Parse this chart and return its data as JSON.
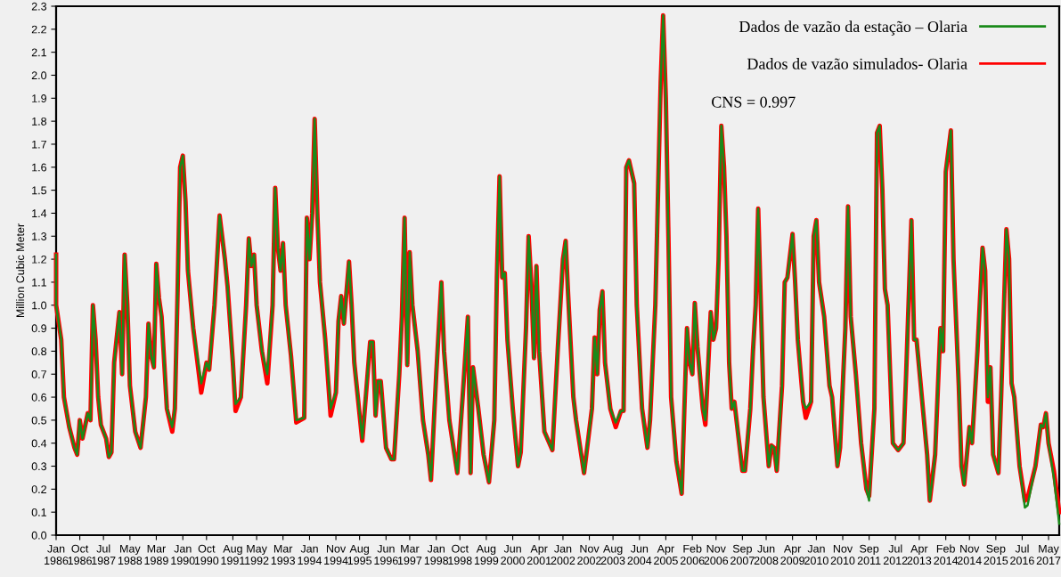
{
  "chart_data": {
    "type": "line",
    "ylabel": "Million Cubic Meter",
    "x": [
      "1986-01",
      "1986-01",
      "1986-03",
      "1986-04",
      "1986-06",
      "1986-08",
      "1986-09",
      "1986-10",
      "1986-11",
      "1987-01",
      "1987-02",
      "1987-03",
      "1987-04",
      "1987-05",
      "1987-06",
      "1987-08",
      "1987-09",
      "1987-10",
      "1987-11",
      "1988-01",
      "1988-02",
      "1988-03",
      "1988-04",
      "1988-05",
      "1988-07",
      "1988-09",
      "1988-11",
      "1988-12",
      "1989-01",
      "1989-02",
      "1989-03",
      "1989-04",
      "1989-05",
      "1989-07",
      "1989-09",
      "1989-10",
      "1989-11",
      "1989-12",
      "1990-01",
      "1990-02",
      "1990-03",
      "1990-05",
      "1990-08",
      "1990-10",
      "1990-11",
      "1991-01",
      "1991-03",
      "1991-05",
      "1991-06",
      "1991-08",
      "1991-09",
      "1991-11",
      "1992-01",
      "1992-02",
      "1992-03",
      "1992-04",
      "1992-05",
      "1992-07",
      "1992-09",
      "1992-11",
      "1992-12",
      "1993-01",
      "1993-02",
      "1993-03",
      "1993-04",
      "1993-06",
      "1993-08",
      "1993-11",
      "1993-12",
      "1994-01",
      "1994-02",
      "1994-03",
      "1994-04",
      "1994-05",
      "1994-07",
      "1994-09",
      "1994-11",
      "1994-12",
      "1995-01",
      "1995-02",
      "1995-04",
      "1995-05",
      "1995-06",
      "1995-09",
      "1995-12",
      "1996-01",
      "1996-02",
      "1996-03",
      "1996-04",
      "1996-06",
      "1996-08",
      "1996-09",
      "1996-11",
      "1996-12",
      "1997-01",
      "1997-02",
      "1997-03",
      "1997-04",
      "1997-06",
      "1997-08",
      "1997-10",
      "1997-11",
      "1998-01",
      "1998-03",
      "1998-04",
      "1998-06",
      "1998-09",
      "1998-11",
      "1999-01",
      "1999-02",
      "1999-03",
      "1999-05",
      "1999-07",
      "1999-09",
      "1999-11",
      "1999-12",
      "2000-01",
      "2000-02",
      "2000-03",
      "2000-04",
      "2000-06",
      "2000-08",
      "2000-09",
      "2000-11",
      "2000-12",
      "2001-01",
      "2001-02",
      "2001-03",
      "2001-04",
      "2001-06",
      "2001-09",
      "2001-11",
      "2002-01",
      "2002-02",
      "2002-03",
      "2002-05",
      "2002-06",
      "2002-09",
      "2002-12",
      "2003-01",
      "2003-02",
      "2003-03",
      "2003-04",
      "2003-05",
      "2003-07",
      "2003-09",
      "2003-11",
      "2003-12",
      "2004-01",
      "2004-02",
      "2004-04",
      "2004-05",
      "2004-07",
      "2004-09",
      "2004-10",
      "2004-12",
      "2005-02",
      "2005-03",
      "2005-04",
      "2005-05",
      "2005-06",
      "2005-08",
      "2005-10",
      "2005-11",
      "2005-12",
      "2006-01",
      "2006-02",
      "2006-03",
      "2006-04",
      "2006-06",
      "2006-07",
      "2006-09",
      "2006-10",
      "2006-11",
      "2006-12",
      "2007-01",
      "2007-02",
      "2007-03",
      "2007-04",
      "2007-05",
      "2007-06",
      "2007-07",
      "2007-09",
      "2007-10",
      "2007-12",
      "2008-01",
      "2008-02",
      "2008-03",
      "2008-04",
      "2008-05",
      "2008-07",
      "2008-08",
      "2008-09",
      "2008-10",
      "2008-12",
      "2009-01",
      "2009-02",
      "2009-04",
      "2009-05",
      "2009-06",
      "2009-08",
      "2009-09",
      "2009-11",
      "2009-12",
      "2010-01",
      "2010-02",
      "2010-04",
      "2010-06",
      "2010-07",
      "2010-09",
      "2010-10",
      "2010-12",
      "2011-01",
      "2011-02",
      "2011-04",
      "2011-06",
      "2011-08",
      "2011-09",
      "2011-11",
      "2011-12",
      "2012-01",
      "2012-02",
      "2012-03",
      "2012-04",
      "2012-05",
      "2012-06",
      "2012-08",
      "2012-10",
      "2012-11",
      "2013-01",
      "2013-02",
      "2013-03",
      "2013-05",
      "2013-07",
      "2013-08",
      "2013-10",
      "2013-12",
      "2014-01",
      "2014-02",
      "2014-04",
      "2014-05",
      "2014-07",
      "2014-08",
      "2014-09",
      "2014-11",
      "2014-12",
      "2015-02",
      "2015-04",
      "2015-05",
      "2015-06",
      "2015-07",
      "2015-08",
      "2015-10",
      "2015-11",
      "2016-01",
      "2016-02",
      "2016-03",
      "2016-04",
      "2016-06",
      "2016-08",
      "2016-09",
      "2016-12",
      "2017-02",
      "2017-03",
      "2017-04",
      "2017-05",
      "2017-07",
      "2017-09"
    ],
    "series": [
      {
        "name": "Dados de vazão simulados- Olaria",
        "color": "#ff0000",
        "values": [
          1.22,
          1.0,
          0.85,
          0.6,
          0.47,
          0.38,
          0.35,
          0.5,
          0.42,
          0.53,
          0.5,
          1.0,
          0.85,
          0.6,
          0.48,
          0.42,
          0.34,
          0.36,
          0.75,
          0.97,
          0.7,
          1.22,
          1.0,
          0.65,
          0.45,
          0.38,
          0.6,
          0.92,
          0.78,
          0.73,
          1.18,
          1.03,
          0.95,
          0.55,
          0.45,
          0.55,
          1.05,
          1.6,
          1.65,
          1.45,
          1.15,
          0.9,
          0.62,
          0.75,
          0.72,
          1.0,
          1.39,
          1.2,
          1.08,
          0.75,
          0.54,
          0.6,
          1.0,
          1.29,
          1.17,
          1.22,
          1.0,
          0.8,
          0.66,
          1.0,
          1.51,
          1.25,
          1.15,
          1.27,
          1.0,
          0.78,
          0.49,
          0.51,
          1.38,
          1.2,
          1.4,
          1.81,
          1.4,
          1.1,
          0.85,
          0.52,
          0.62,
          0.93,
          1.04,
          0.92,
          1.19,
          1.0,
          0.75,
          0.41,
          0.84,
          0.84,
          0.52,
          0.67,
          0.67,
          0.38,
          0.33,
          0.33,
          0.7,
          0.95,
          1.38,
          0.74,
          1.23,
          1.0,
          0.8,
          0.5,
          0.35,
          0.24,
          0.7,
          1.1,
          0.8,
          0.5,
          0.27,
          0.6,
          0.95,
          0.27,
          0.73,
          0.55,
          0.35,
          0.23,
          0.5,
          1.12,
          1.56,
          1.12,
          1.14,
          0.85,
          0.55,
          0.3,
          0.36,
          0.9,
          1.3,
          1.1,
          0.77,
          1.17,
          0.8,
          0.45,
          0.37,
          0.8,
          1.2,
          1.28,
          1.05,
          0.6,
          0.5,
          0.27,
          0.55,
          0.86,
          0.7,
          0.98,
          1.06,
          0.75,
          0.55,
          0.47,
          0.54,
          0.54,
          1.6,
          1.63,
          1.53,
          1.0,
          0.55,
          0.38,
          0.5,
          1.0,
          1.97,
          2.26,
          1.9,
          1.3,
          0.6,
          0.32,
          0.18,
          0.55,
          0.9,
          0.75,
          0.7,
          1.01,
          0.82,
          0.55,
          0.48,
          0.97,
          0.85,
          0.9,
          1.2,
          1.78,
          1.6,
          1.3,
          0.75,
          0.55,
          0.58,
          0.48,
          0.28,
          0.28,
          0.55,
          0.8,
          1.0,
          1.42,
          1.0,
          0.6,
          0.3,
          0.39,
          0.38,
          0.28,
          0.65,
          1.1,
          1.12,
          1.31,
          1.1,
          0.85,
          0.58,
          0.51,
          0.58,
          1.3,
          1.37,
          1.1,
          0.95,
          0.65,
          0.6,
          0.3,
          0.38,
          0.9,
          1.43,
          0.95,
          0.7,
          0.4,
          0.2,
          0.17,
          0.55,
          1.75,
          1.78,
          1.5,
          1.07,
          1.0,
          0.7,
          0.4,
          0.37,
          0.4,
          0.7,
          1.37,
          0.85,
          0.85,
          0.6,
          0.35,
          0.15,
          0.35,
          0.9,
          0.8,
          1.58,
          1.76,
          1.2,
          0.65,
          0.3,
          0.22,
          0.47,
          0.4,
          0.8,
          1.25,
          1.15,
          0.58,
          0.73,
          0.35,
          0.27,
          0.6,
          1.33,
          1.2,
          0.66,
          0.6,
          0.3,
          0.15,
          0.16,
          0.3,
          0.48,
          0.47,
          0.53,
          0.4,
          0.28,
          0.1
        ]
      },
      {
        "name": "Dados de vazão da estação – Olaria",
        "color": "#1a8a1a",
        "values": [
          1.22,
          1.0,
          0.85,
          0.6,
          0.47,
          0.38,
          0.35,
          0.5,
          0.42,
          0.53,
          0.5,
          1.0,
          0.85,
          0.6,
          0.48,
          0.42,
          0.34,
          0.36,
          0.75,
          0.97,
          0.7,
          1.22,
          1.0,
          0.65,
          0.45,
          0.38,
          0.6,
          0.92,
          0.78,
          0.73,
          1.18,
          1.03,
          0.95,
          0.55,
          0.47,
          0.55,
          1.05,
          1.6,
          1.65,
          1.45,
          1.15,
          0.9,
          0.66,
          0.75,
          0.72,
          1.0,
          1.39,
          1.2,
          1.08,
          0.75,
          0.57,
          0.6,
          1.0,
          1.29,
          1.17,
          1.22,
          1.0,
          0.8,
          0.7,
          1.0,
          1.51,
          1.25,
          1.15,
          1.27,
          1.0,
          0.78,
          0.5,
          0.51,
          1.38,
          1.2,
          1.4,
          1.81,
          1.4,
          1.1,
          0.85,
          0.55,
          0.62,
          0.93,
          1.04,
          0.92,
          1.19,
          1.0,
          0.75,
          0.42,
          0.84,
          0.84,
          0.52,
          0.67,
          0.67,
          0.38,
          0.33,
          0.33,
          0.7,
          0.95,
          1.38,
          0.74,
          1.23,
          1.0,
          0.8,
          0.5,
          0.35,
          0.24,
          0.7,
          1.1,
          0.8,
          0.5,
          0.27,
          0.6,
          0.95,
          0.27,
          0.73,
          0.55,
          0.35,
          0.23,
          0.5,
          1.12,
          1.56,
          1.12,
          1.14,
          0.85,
          0.55,
          0.3,
          0.36,
          0.9,
          1.3,
          1.1,
          0.77,
          1.17,
          0.8,
          0.45,
          0.37,
          0.8,
          1.2,
          1.28,
          1.05,
          0.6,
          0.5,
          0.27,
          0.55,
          0.86,
          0.7,
          0.98,
          1.06,
          0.75,
          0.55,
          0.49,
          0.54,
          0.54,
          1.6,
          1.63,
          1.53,
          1.0,
          0.55,
          0.38,
          0.5,
          1.0,
          1.97,
          2.26,
          1.9,
          1.3,
          0.6,
          0.32,
          0.18,
          0.55,
          0.9,
          0.75,
          0.7,
          1.01,
          0.82,
          0.55,
          0.5,
          0.97,
          0.85,
          0.9,
          1.2,
          1.78,
          1.6,
          1.3,
          0.75,
          0.55,
          0.58,
          0.48,
          0.28,
          0.28,
          0.55,
          0.8,
          1.0,
          1.42,
          1.0,
          0.6,
          0.3,
          0.39,
          0.38,
          0.28,
          0.65,
          1.1,
          1.12,
          1.31,
          1.1,
          0.85,
          0.58,
          0.55,
          0.58,
          1.3,
          1.37,
          1.1,
          0.95,
          0.65,
          0.6,
          0.3,
          0.38,
          0.9,
          1.43,
          0.95,
          0.7,
          0.4,
          0.2,
          0.15,
          0.55,
          1.75,
          1.78,
          1.5,
          1.07,
          1.0,
          0.7,
          0.4,
          0.37,
          0.4,
          0.7,
          1.37,
          0.85,
          0.85,
          0.6,
          0.35,
          0.15,
          0.35,
          0.9,
          0.8,
          1.58,
          1.76,
          1.2,
          0.65,
          0.3,
          0.22,
          0.47,
          0.4,
          0.8,
          1.25,
          1.15,
          0.6,
          0.73,
          0.35,
          0.27,
          0.6,
          1.33,
          1.2,
          0.66,
          0.6,
          0.3,
          0.12,
          0.13,
          0.3,
          0.48,
          0.47,
          0.53,
          0.4,
          0.25,
          0.05
        ]
      }
    ],
    "annotations": [
      "CNS = 0.997"
    ],
    "xlim": [
      "1986-01",
      "2017-09"
    ],
    "xticks": [
      {
        "value": "1986-01",
        "label": "Jan\n1986"
      },
      {
        "value": "1986-10",
        "label": "Oct\n1986"
      },
      {
        "value": "1987-07",
        "label": "Jul\n1987"
      },
      {
        "value": "1988-05",
        "label": "May\n1988"
      },
      {
        "value": "1989-03",
        "label": "Mar\n1989"
      },
      {
        "value": "1990-01",
        "label": "Jan\n1990"
      },
      {
        "value": "1990-10",
        "label": "Oct\n1990"
      },
      {
        "value": "1991-08",
        "label": "Aug\n1991"
      },
      {
        "value": "1992-05",
        "label": "May\n1992"
      },
      {
        "value": "1993-03",
        "label": "Mar\n1993"
      },
      {
        "value": "1994-01",
        "label": "Jan\n1994"
      },
      {
        "value": "1994-11",
        "label": "Nov\n1994"
      },
      {
        "value": "1995-08",
        "label": "Aug\n1995"
      },
      {
        "value": "1996-06",
        "label": "Jun\n1996"
      },
      {
        "value": "1997-03",
        "label": "Mar\n1997"
      },
      {
        "value": "1998-01",
        "label": "Jan\n1998"
      },
      {
        "value": "1998-10",
        "label": "Oct\n1998"
      },
      {
        "value": "1999-08",
        "label": "Aug\n1999"
      },
      {
        "value": "2000-06",
        "label": "Jun\n2000"
      },
      {
        "value": "2001-04",
        "label": "Apr\n2001"
      },
      {
        "value": "2002-01",
        "label": "Jan\n2002"
      },
      {
        "value": "2002-11",
        "label": "Nov\n2002"
      },
      {
        "value": "2003-08",
        "label": "Aug\n2003"
      },
      {
        "value": "2004-06",
        "label": "Jun\n2004"
      },
      {
        "value": "2005-04",
        "label": "Apr\n2005"
      },
      {
        "value": "2006-02",
        "label": "Feb\n2006"
      },
      {
        "value": "2006-11",
        "label": "Nov\n2006"
      },
      {
        "value": "2007-09",
        "label": "Sep\n2007"
      },
      {
        "value": "2008-06",
        "label": "Jun\n2008"
      },
      {
        "value": "2009-04",
        "label": "Apr\n2009"
      },
      {
        "value": "2010-01",
        "label": "Jan\n2010"
      },
      {
        "value": "2010-11",
        "label": "Nov\n2010"
      },
      {
        "value": "2011-09",
        "label": "Sep\n2011"
      },
      {
        "value": "2012-07",
        "label": "Jul\n2012"
      },
      {
        "value": "2013-04",
        "label": "Apr\n2013"
      },
      {
        "value": "2014-02",
        "label": "Feb\n2014"
      },
      {
        "value": "2014-11",
        "label": "Nov\n2014"
      },
      {
        "value": "2015-09",
        "label": "Sep\n2015"
      },
      {
        "value": "2016-07",
        "label": "Jul\n2016"
      },
      {
        "value": "2017-05",
        "label": "May\n2017"
      }
    ],
    "ylim": [
      0,
      2.3
    ],
    "yticks": [
      {
        "value": 0,
        "label": "0.0"
      },
      0.1,
      0.2,
      0.3,
      0.4,
      0.5,
      0.6,
      0.7,
      0.8,
      0.9,
      {
        "value": 1,
        "label": "1.0"
      },
      1.1,
      1.2,
      1.3,
      1.4,
      1.5,
      1.6,
      1.7,
      1.8,
      1.9,
      {
        "value": 2,
        "label": "2.0"
      },
      2.1,
      2.2,
      2.3
    ],
    "legend": "top right",
    "grid": false
  }
}
